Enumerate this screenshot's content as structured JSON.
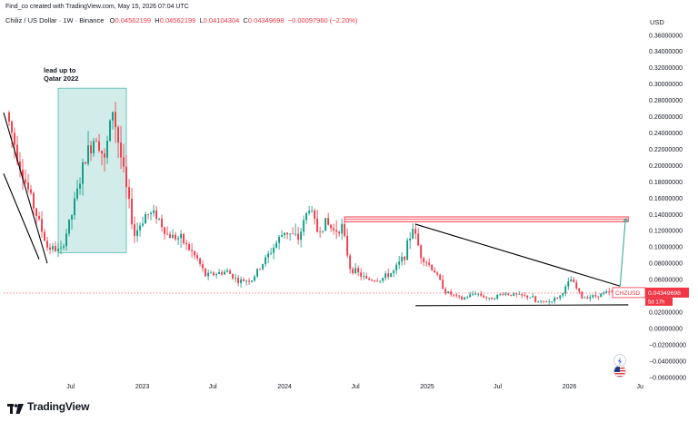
{
  "header": {
    "credit": "Find_co created with TradingView.com, May 15, 2026 07:04 UTC",
    "symbol": "Chiliz / US Dollar · 1W · Binance",
    "open_label": "O",
    "open": "0.04562199",
    "high_label": "H",
    "high": "0.04562199",
    "low_label": "L",
    "low": "0.04104304",
    "close_label": "C",
    "close": "0.04349698",
    "change": "−0.00097960 (−2.20%)"
  },
  "price_axis": {
    "currency": "USD"
  },
  "annotation": {
    "line1": "lead up to",
    "line2": "Qatar 2022"
  },
  "price_tag": {
    "ticker": "CHZUSD",
    "price": "0.04349698",
    "countdown": "5d 17h"
  },
  "logo": {
    "word": "TradingView",
    "icon": "tradingview-logo-icon"
  },
  "side_icons": [
    "lightning-icon",
    "us-flag-icon"
  ],
  "colors": {
    "up": "#089981",
    "down": "#f23645",
    "zone": "#b2dfdb",
    "resistance": "#f23645",
    "trend": "#000000"
  },
  "chart_data": {
    "type": "candlestick",
    "title": "Chiliz / US Dollar · 1W · Binance",
    "ylabel": "USD",
    "ylim": [
      -0.068,
      0.372
    ],
    "y_ticks": [
      0.36,
      0.34,
      0.32,
      0.3,
      0.28,
      0.26,
      0.24,
      0.22,
      0.2,
      0.18,
      0.16,
      0.14,
      0.12,
      0.1,
      0.08,
      0.06,
      0.02,
      0.0,
      -0.02,
      -0.04,
      -0.06
    ],
    "y_tick_labels": [
      "0.36000000",
      "0.34000000",
      "0.32000000",
      "0.30000000",
      "0.28000000",
      "0.26000000",
      "0.24000000",
      "0.22000000",
      "0.20000000",
      "0.18000000",
      "0.16000000",
      "0.14000000",
      "0.12000000",
      "0.10000000",
      "0.08000000",
      "0.06000000",
      "0.02000000",
      "0.00000000",
      "−0.02000000",
      "−0.04000000",
      "−0.06000000"
    ],
    "x_ticks": [
      {
        "label": "Jul",
        "date": "2022-07-01"
      },
      {
        "label": "2023",
        "date": "2023-01-01"
      },
      {
        "label": "Jul",
        "date": "2023-07-01"
      },
      {
        "label": "2024",
        "date": "2024-01-01"
      },
      {
        "label": "Jul",
        "date": "2024-07-01"
      },
      {
        "label": "2025",
        "date": "2025-01-01"
      },
      {
        "label": "Jul",
        "date": "2025-07-01"
      },
      {
        "label": "2026",
        "date": "2026-01-01"
      },
      {
        "label": "Ju",
        "date": "2026-07-01"
      }
    ],
    "xlim": [
      "2022-01-10",
      "2026-07-10"
    ],
    "anchors": [
      {
        "date": "2022-01-24",
        "price": 0.265
      },
      {
        "date": "2022-03-07",
        "price": 0.19
      },
      {
        "date": "2022-05-09",
        "price": 0.1
      },
      {
        "date": "2022-06-13",
        "price": 0.095
      },
      {
        "date": "2022-07-11",
        "price": 0.14
      },
      {
        "date": "2022-08-15",
        "price": 0.21
      },
      {
        "date": "2022-09-12",
        "price": 0.24
      },
      {
        "date": "2022-10-03",
        "price": 0.205
      },
      {
        "date": "2022-10-24",
        "price": 0.27
      },
      {
        "date": "2022-11-14",
        "price": 0.21
      },
      {
        "date": "2022-11-28",
        "price": 0.17
      },
      {
        "date": "2022-12-19",
        "price": 0.115
      },
      {
        "date": "2023-01-16",
        "price": 0.14
      },
      {
        "date": "2023-02-13",
        "price": 0.14
      },
      {
        "date": "2023-03-13",
        "price": 0.115
      },
      {
        "date": "2023-04-17",
        "price": 0.11
      },
      {
        "date": "2023-05-29",
        "price": 0.085
      },
      {
        "date": "2023-06-19",
        "price": 0.065
      },
      {
        "date": "2023-08-14",
        "price": 0.07
      },
      {
        "date": "2023-09-11",
        "price": 0.058
      },
      {
        "date": "2023-10-16",
        "price": 0.06
      },
      {
        "date": "2023-11-13",
        "price": 0.08
      },
      {
        "date": "2023-12-11",
        "price": 0.1
      },
      {
        "date": "2024-01-08",
        "price": 0.12
      },
      {
        "date": "2024-02-12",
        "price": 0.11
      },
      {
        "date": "2024-03-11",
        "price": 0.15
      },
      {
        "date": "2024-04-01",
        "price": 0.12
      },
      {
        "date": "2024-04-22",
        "price": 0.13
      },
      {
        "date": "2024-05-13",
        "price": 0.12
      },
      {
        "date": "2024-06-03",
        "price": 0.125
      },
      {
        "date": "2024-06-24",
        "price": 0.075
      },
      {
        "date": "2024-08-05",
        "price": 0.06
      },
      {
        "date": "2024-09-09",
        "price": 0.06
      },
      {
        "date": "2024-10-14",
        "price": 0.07
      },
      {
        "date": "2024-11-11",
        "price": 0.09
      },
      {
        "date": "2024-12-02",
        "price": 0.125
      },
      {
        "date": "2024-12-23",
        "price": 0.09
      },
      {
        "date": "2025-01-27",
        "price": 0.07
      },
      {
        "date": "2025-02-24",
        "price": 0.045
      },
      {
        "date": "2025-04-07",
        "price": 0.036
      },
      {
        "date": "2025-05-12",
        "price": 0.044
      },
      {
        "date": "2025-06-16",
        "price": 0.036
      },
      {
        "date": "2025-07-21",
        "price": 0.043
      },
      {
        "date": "2025-08-25",
        "price": 0.041
      },
      {
        "date": "2025-10-06",
        "price": 0.038
      },
      {
        "date": "2025-10-13",
        "price": 0.032
      },
      {
        "date": "2025-11-17",
        "price": 0.033
      },
      {
        "date": "2025-12-15",
        "price": 0.04
      },
      {
        "date": "2026-01-12",
        "price": 0.06
      },
      {
        "date": "2026-02-09",
        "price": 0.038
      },
      {
        "date": "2026-03-16",
        "price": 0.04
      },
      {
        "date": "2026-04-13",
        "price": 0.044
      },
      {
        "date": "2026-05-11",
        "price": 0.0435
      }
    ],
    "qatar_zone": {
      "from": "2022-05-30",
      "to": "2022-11-21",
      "low": 0.093,
      "high": 0.295
    },
    "resistance_band": {
      "from": "2024-06-03",
      "to": "2026-06-01",
      "low": 0.131,
      "high": 0.137
    },
    "trend_lines": [
      {
        "name": "downtrend-1",
        "from": {
          "date": "2022-01-10",
          "price": 0.265
        },
        "to": {
          "date": "2022-05-02",
          "price": 0.08
        }
      },
      {
        "name": "downtrend-2",
        "from": {
          "date": "2022-01-10",
          "price": 0.19
        },
        "to": {
          "date": "2022-04-11",
          "price": 0.085
        }
      },
      {
        "name": "descending-resistance",
        "from": {
          "date": "2024-12-02",
          "price": 0.128
        },
        "to": {
          "date": "2026-05-11",
          "price": 0.052
        }
      },
      {
        "name": "support",
        "from": {
          "date": "2024-12-02",
          "price": 0.028
        },
        "to": {
          "date": "2026-06-01",
          "price": 0.029
        }
      }
    ],
    "projection": {
      "from": {
        "date": "2026-05-11",
        "price": 0.052
      },
      "to": {
        "date": "2026-05-25",
        "price": 0.135
      }
    },
    "last_price": 0.04349698
  }
}
